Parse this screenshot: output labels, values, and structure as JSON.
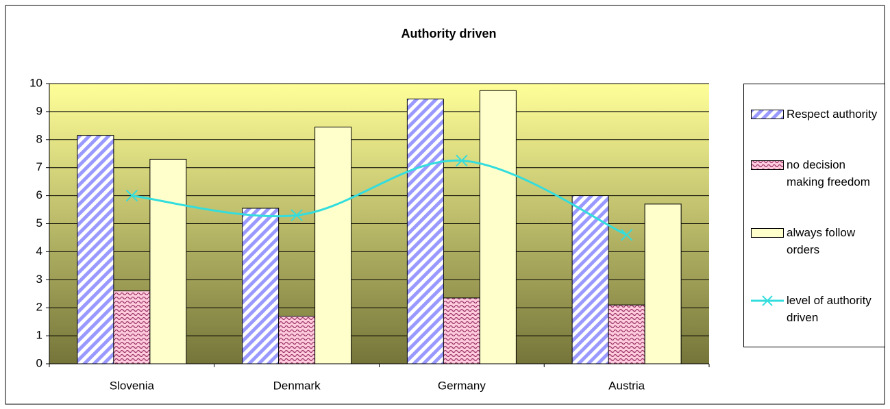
{
  "chart_data": {
    "type": "bar",
    "title": "Authority driven",
    "categories": [
      "Slovenia",
      "Denmark",
      "Germany",
      "Austria"
    ],
    "series": [
      {
        "name": "Respect authority",
        "color": "#9999ff",
        "values": [
          8.15,
          5.55,
          9.45,
          6.0
        ]
      },
      {
        "name": "no decision making freedom",
        "color": "#993366",
        "values": [
          2.6,
          1.7,
          2.35,
          2.1
        ]
      },
      {
        "name": "always follow orders",
        "color": "#ffffcc",
        "values": [
          7.3,
          8.45,
          9.75,
          5.7
        ]
      },
      {
        "name": "level of authority driven",
        "color": "#33dddd",
        "type": "line",
        "values": [
          6.0,
          5.3,
          7.25,
          4.6
        ]
      }
    ],
    "ylim": [
      0,
      10
    ],
    "yticks": [
      0,
      1,
      2,
      3,
      4,
      5,
      6,
      7,
      8,
      9,
      10
    ],
    "grid": true,
    "legend": "right"
  }
}
